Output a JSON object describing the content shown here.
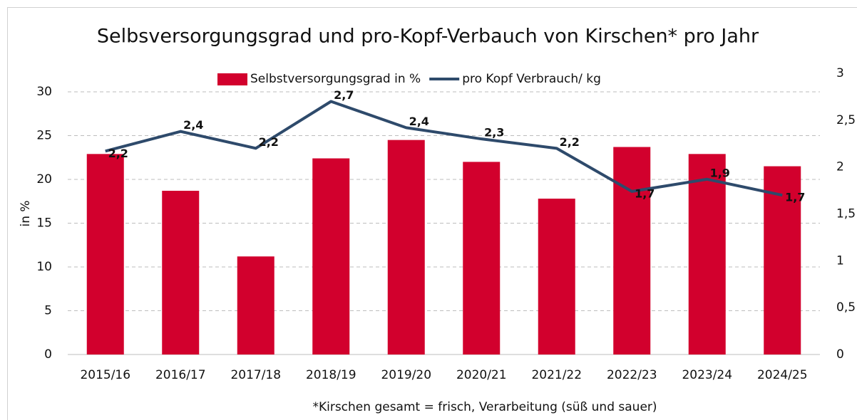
{
  "chart_data": {
    "type": "bar_line",
    "title": "Selbsversorgungsgrad und pro-Kopf-Verbauch von Kirschen* pro Jahr",
    "y_label": "in %",
    "footnote": "*Kirschen gesamt = frisch, Verarbeitung (süß und sauer)",
    "categories": [
      "2015/16",
      "2016/17",
      "2017/18",
      "2018/19",
      "2019/20",
      "2020/21",
      "2021/22",
      "2022/23",
      "2023/24",
      "2024/25"
    ],
    "series": [
      {
        "name": "Selbstversorgungsgrad in %",
        "color": "#d2002d",
        "type": "bar",
        "values": [
          22.9,
          18.7,
          11.2,
          22.4,
          24.5,
          22.0,
          17.8,
          23.7,
          22.9,
          21.5
        ]
      },
      {
        "name": "pro Kopf Verbrauch/ kg",
        "color": "#2e4a6b",
        "type": "line",
        "axis": "y2",
        "values": [
          2.17,
          2.38,
          2.2,
          2.7,
          2.42,
          2.3,
          2.2,
          1.74,
          1.87,
          1.7
        ],
        "value_labels": [
          "2,2",
          "2,4",
          "2,2",
          "2,7",
          "2,4",
          "2,3",
          "2,2",
          "1,7",
          "1,9",
          "1,7"
        ]
      }
    ],
    "ylim": [
      0,
      30
    ],
    "yticks": [
      0,
      5,
      10,
      15,
      20,
      25,
      30
    ],
    "y2lim": [
      0,
      3
    ],
    "y2ticks": [
      0,
      {
        "value": 0.5,
        "label": "0,5"
      },
      1,
      {
        "value": 1.5,
        "label": "1,5"
      },
      2,
      {
        "value": 2.5,
        "label": "2,5"
      },
      3
    ],
    "grid": true
  }
}
